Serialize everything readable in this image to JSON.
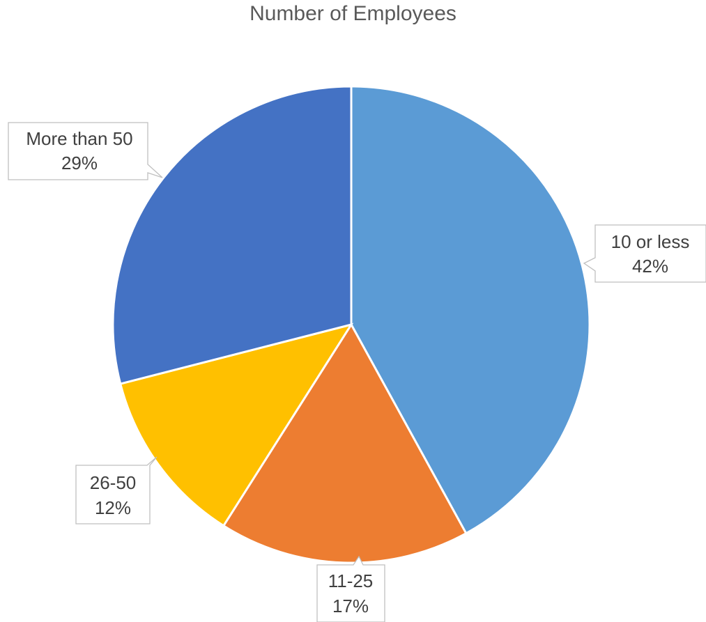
{
  "chart_data": {
    "type": "pie",
    "title": "Number of Employees",
    "slices": [
      {
        "label": "10 or less",
        "value": 42,
        "value_text": "42%",
        "color": "#5B9BD5"
      },
      {
        "label": "11-25",
        "value": 17,
        "value_text": "17%",
        "color": "#ED7D31"
      },
      {
        "label": "26-50",
        "value": 12,
        "value_text": "12%",
        "color": "#FFC000"
      },
      {
        "label": "More than 50",
        "value": 29,
        "value_text": "29%",
        "color": "#4472C4"
      }
    ],
    "legend": "none",
    "data_labels": "callouts"
  }
}
